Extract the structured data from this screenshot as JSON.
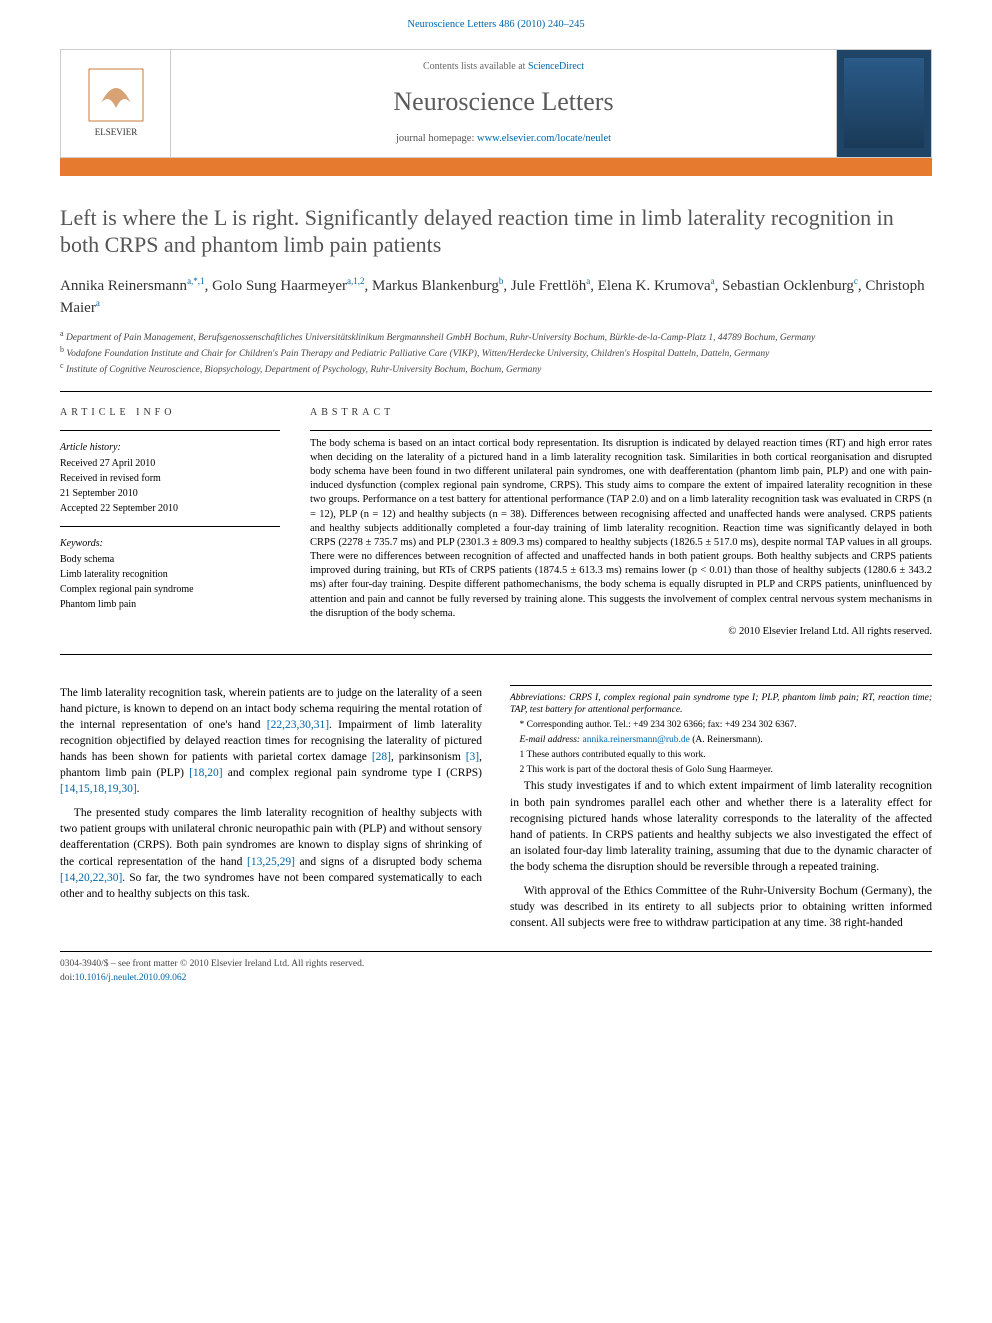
{
  "header": {
    "citation_prefix": "Neuroscience Letters 486 (2010) 240–245",
    "contents_line_pre": "Contents lists available at ",
    "contents_link": "ScienceDirect",
    "journal_name": "Neuroscience Letters",
    "home_label": "journal homepage: ",
    "home_url": "www.elsevier.com/locate/neulet"
  },
  "article": {
    "title": "Left is where the L is right. Significantly delayed reaction time in limb laterality recognition in both CRPS and phantom limb pain patients",
    "authors_html": "Annika Reinersmann<sup>a,*,1</sup>, Golo Sung Haarmeyer<sup>a,1,2</sup>, Markus Blankenburg<sup>b</sup>, Jule Frettlöh<sup>a</sup>, Elena K. Krumova<sup>a</sup>, Sebastian Ocklenburg<sup>c</sup>, Christoph Maier<sup>a</sup>",
    "affiliations": [
      "a Department of Pain Management, Berufsgenossenschaftliches Universitätsklinikum Bergmannsheil GmbH Bochum, Ruhr-University Bochum, Bürkle-de-la-Camp-Platz 1, 44789 Bochum, Germany",
      "b Vodafone Foundation Institute and Chair for Children's Pain Therapy and Pediatric Palliative Care (VIKP), Witten/Herdecke University, Children's Hospital Datteln, Datteln, Germany",
      "c Institute of Cognitive Neuroscience, Biopsychology, Department of Psychology, Ruhr-University Bochum, Bochum, Germany"
    ]
  },
  "info": {
    "heading": "article info",
    "history_label": "Article history:",
    "history": [
      "Received 27 April 2010",
      "Received in revised form",
      "21 September 2010",
      "Accepted 22 September 2010"
    ],
    "keywords_label": "Keywords:",
    "keywords": [
      "Body schema",
      "Limb laterality recognition",
      "Complex regional pain syndrome",
      "Phantom limb pain"
    ]
  },
  "abstract": {
    "heading": "abstract",
    "text": "The body schema is based on an intact cortical body representation. Its disruption is indicated by delayed reaction times (RT) and high error rates when deciding on the laterality of a pictured hand in a limb laterality recognition task. Similarities in both cortical reorganisation and disrupted body schema have been found in two different unilateral pain syndromes, one with deafferentation (phantom limb pain, PLP) and one with pain-induced dysfunction (complex regional pain syndrome, CRPS). This study aims to compare the extent of impaired laterality recognition in these two groups. Performance on a test battery for attentional performance (TAP 2.0) and on a limb laterality recognition task was evaluated in CRPS (n = 12), PLP (n = 12) and healthy subjects (n = 38). Differences between recognising affected and unaffected hands were analysed. CRPS patients and healthy subjects additionally completed a four-day training of limb laterality recognition. Reaction time was significantly delayed in both CRPS (2278 ± 735.7 ms) and PLP (2301.3 ± 809.3 ms) compared to healthy subjects (1826.5 ± 517.0 ms), despite normal TAP values in all groups. There were no differences between recognition of affected and unaffected hands in both patient groups. Both healthy subjects and CRPS patients improved during training, but RTs of CRPS patients (1874.5 ± 613.3 ms) remains lower (p < 0.01) than those of healthy subjects (1280.6 ± 343.2 ms) after four-day training. Despite different pathomechanisms, the body schema is equally disrupted in PLP and CRPS patients, uninfluenced by attention and pain and cannot be fully reversed by training alone. This suggests the involvement of complex central nervous system mechanisms in the disruption of the body schema.",
    "copyright": "© 2010 Elsevier Ireland Ltd. All rights reserved."
  },
  "body": {
    "p1": "The limb laterality recognition task, wherein patients are to judge on the laterality of a seen hand picture, is known to depend on an intact body schema requiring the mental rotation of the internal representation of one's hand [22,23,30,31]. Impairment of limb laterality recognition objectified by delayed reaction times for recognising the laterality of pictured hands has been shown for patients with parietal cortex damage [28], parkinsonism [3], phantom limb pain (PLP) [18,20] and complex regional pain syndrome type I (CRPS) [14,15,18,19,30].",
    "p2": "The presented study compares the limb laterality recognition of healthy subjects with two patient groups with unilateral chronic neuropathic pain with (PLP) and without sensory deafferentation (CRPS). Both pain syndromes are known to display signs of shrinking of the cortical representation of the hand [13,25,29] and signs of a disrupted body schema [14,20,22,30]. So far, the two syndromes have not been compared systematically to each other and to healthy subjects on this task.",
    "p3": "This study investigates if and to which extent impairment of limb laterality recognition in both pain syndromes parallel each other and whether there is a laterality effect for recognising pictured hands whose laterality corresponds to the laterality of the affected hand of patients. In CRPS patients and healthy subjects we also investigated the effect of an isolated four-day limb laterality training, assuming that due to the dynamic character of the body schema the disruption should be reversible through a repeated training.",
    "p4": "With approval of the Ethics Committee of the Ruhr-University Bochum (Germany), the study was described in its entirety to all subjects prior to obtaining written informed consent. All subjects were free to withdraw participation at any time. 38 right-handed"
  },
  "footnotes": {
    "abbrev": "Abbreviations: CRPS I, complex regional pain syndrome type I; PLP, phantom limb pain; RT, reaction time; TAP, test battery for attentional performance.",
    "corr": "* Corresponding author. Tel.: +49 234 302 6366; fax: +49 234 302 6367.",
    "email_label": "E-mail address: ",
    "email": "annika.reinersmann@rub.de",
    "email_suffix": " (A. Reinersmann).",
    "n1": "1 These authors contributed equally to this work.",
    "n2": "2 This work is part of the doctoral thesis of Golo Sung Haarmeyer."
  },
  "footer": {
    "line1": "0304-3940/$ – see front matter © 2010 Elsevier Ireland Ltd. All rights reserved.",
    "doi_label": "doi:",
    "doi": "10.1016/j.neulet.2010.09.062"
  },
  "colors": {
    "orange_bar": "#e67a2e",
    "link": "#0066aa",
    "title_gray": "#555555"
  }
}
